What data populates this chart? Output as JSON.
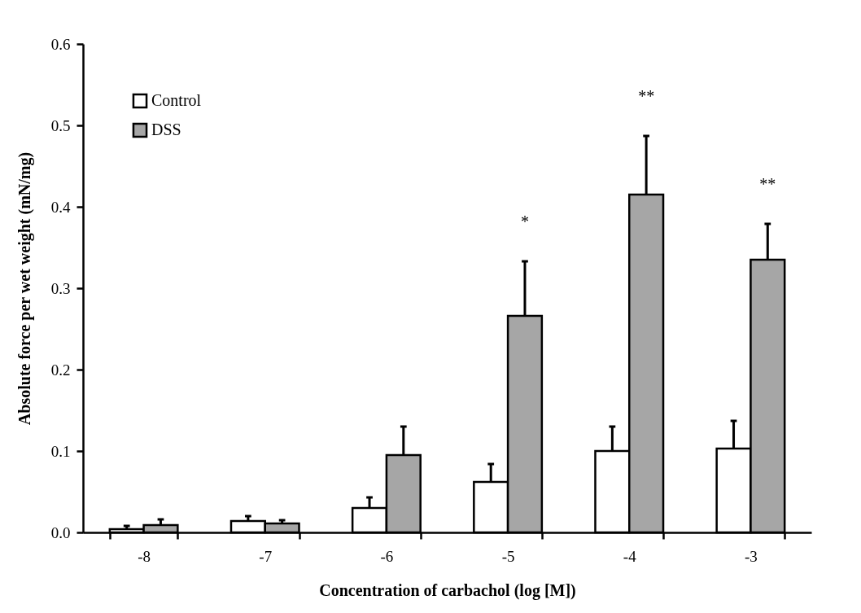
{
  "chart_data": {
    "type": "bar",
    "xlabel": "Concentration of carbachol (log [M])",
    "ylabel": "Absolute force per wet weight (mN/mg)",
    "categories": [
      "-8",
      "-7",
      "-6",
      "-5",
      "-4",
      "-3"
    ],
    "series": [
      {
        "name": "Control",
        "color": "#ffffff",
        "values": [
          0.004,
          0.014,
          0.03,
          0.062,
          0.1,
          0.103
        ],
        "errors": [
          [
            0.004,
            0.008
          ],
          [
            0.014,
            0.02
          ],
          [
            0.03,
            0.043
          ],
          [
            0.062,
            0.084
          ],
          [
            0.1,
            0.13
          ],
          [
            0.103,
            0.137
          ]
        ]
      },
      {
        "name": "DSS",
        "color": "#a6a6a6",
        "values": [
          0.009,
          0.011,
          0.095,
          0.266,
          0.415,
          0.335
        ],
        "errors": [
          [
            0.009,
            0.016
          ],
          [
            0.011,
            0.015
          ],
          [
            0.095,
            0.13
          ],
          [
            0.266,
            0.333
          ],
          [
            0.415,
            0.487
          ],
          [
            0.335,
            0.379
          ]
        ]
      }
    ],
    "ylim": [
      0,
      0.6
    ],
    "yticks": [
      {
        "value": 0,
        "label": "0.0"
      },
      {
        "value": 0.1,
        "label": "0.1"
      },
      {
        "value": 0.2,
        "label": "0.2"
      },
      {
        "value": 0.3,
        "label": "0.3"
      },
      {
        "value": 0.4,
        "label": "0.4"
      },
      {
        "value": 0.5,
        "label": "0.5"
      },
      {
        "value": 0.6,
        "label": "0.6"
      }
    ],
    "annotations": [
      "*",
      "**",
      "**"
    ],
    "legend": "top left",
    "grid": false
  }
}
